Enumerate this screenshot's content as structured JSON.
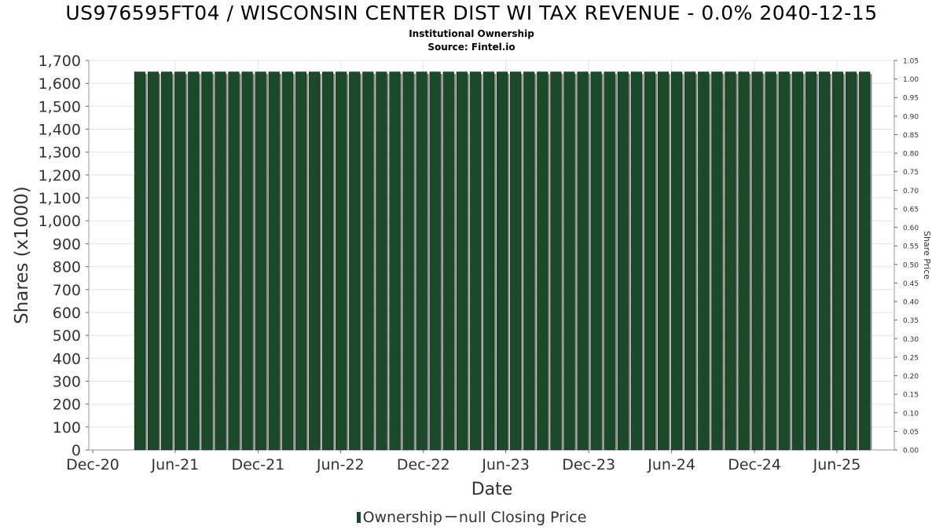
{
  "header": {
    "title": "US976595FT04 / WISCONSIN CENTER DIST WI TAX REVENUE - 0.0% 2040-12-15",
    "subtitle": "Institutional Ownership",
    "source": "Source: Fintel.io"
  },
  "legend": {
    "ownership_label": "Ownership",
    "price_label": "null Closing Price"
  },
  "colors": {
    "bar_fill": "#1a4a2a",
    "bar_shadow": "#8a8a8a",
    "grid": "#e4e4e4",
    "axis_text": "#333333"
  },
  "chart_data": {
    "type": "bar",
    "title": "US976595FT04 / WISCONSIN CENTER DIST WI TAX REVENUE - 0.0% 2040-12-15",
    "xlabel": "Date",
    "ylabel": "Shares (x1000)",
    "y2label": "Share Price",
    "x_tick_labels": [
      "Dec-20",
      "Jun-21",
      "Dec-21",
      "Jun-22",
      "Dec-22",
      "Jun-23",
      "Dec-23",
      "Jun-24",
      "Dec-24",
      "Jun-25"
    ],
    "ylim": [
      0,
      1700
    ],
    "y_ticks": [
      0,
      100,
      200,
      300,
      400,
      500,
      600,
      700,
      800,
      900,
      1000,
      1100,
      1200,
      1300,
      1400,
      1500,
      1600,
      1700
    ],
    "y2lim": [
      0,
      1.05
    ],
    "y2_ticks": [
      "0.00",
      "0.05",
      "0.10",
      "0.15",
      "0.20",
      "0.25",
      "0.30",
      "0.35",
      "0.40",
      "0.45",
      "0.50",
      "0.55",
      "0.60",
      "0.65",
      "0.70",
      "0.75",
      "0.80",
      "0.85",
      "0.90",
      "0.95",
      "1.00",
      "1.05"
    ],
    "grid": true,
    "legend_position": "bottom",
    "series": [
      {
        "name": "Ownership",
        "bar_count": 55,
        "first_bar_x": "2021-03-15",
        "last_bar_x": "2025-08-01",
        "value": 1650
      }
    ]
  }
}
